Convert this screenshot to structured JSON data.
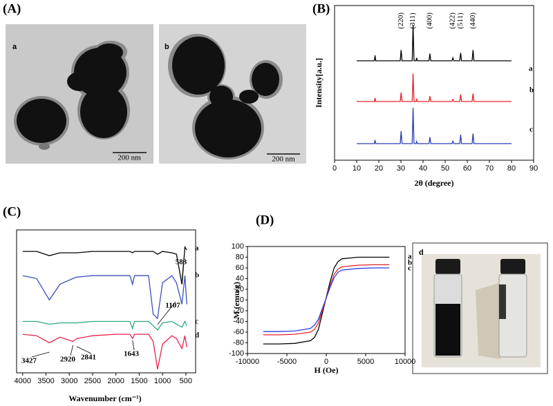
{
  "panel_labels": [
    "(A)",
    "(B)",
    "(C)",
    "(D)"
  ],
  "tem": {
    "labels": [
      "a",
      "b"
    ],
    "scale_bars": [
      "200 nm",
      "200 nm"
    ]
  },
  "photo_label": "d",
  "chart_data": [
    {
      "type": "line",
      "xlabel": "2θ (degree)",
      "ylabel": "Intensity[a.u.]",
      "xlim": [
        0,
        90
      ],
      "xticks": [
        0,
        10,
        20,
        30,
        40,
        50,
        60,
        70,
        80,
        90
      ],
      "x": [
        10,
        18,
        18.3,
        18.6,
        29.7,
        30.1,
        30.5,
        35.1,
        35.5,
        35.9,
        36.8,
        37.1,
        37.4,
        42.7,
        43.1,
        43.5,
        53.1,
        53.5,
        53.9,
        56.6,
        57.0,
        57.4,
        62.2,
        62.6,
        63.0,
        80
      ],
      "series": [
        {
          "name": "a",
          "color": "#000000",
          "values": [
            0,
            0,
            15,
            0,
            0,
            30,
            0,
            0,
            100,
            0,
            0,
            8,
            0,
            0,
            20,
            0,
            0,
            8,
            0,
            0,
            22,
            0,
            0,
            30,
            0,
            0
          ]
        },
        {
          "name": "b",
          "color": "#e8202a",
          "values": [
            0,
            0,
            10,
            0,
            0,
            25,
            0,
            0,
            78,
            0,
            0,
            6,
            0,
            0,
            15,
            0,
            0,
            6,
            0,
            0,
            20,
            0,
            0,
            22,
            0,
            0
          ]
        },
        {
          "name": "c",
          "color": "#2a3fb0",
          "values": [
            0,
            0,
            10,
            0,
            0,
            35,
            0,
            0,
            100,
            0,
            0,
            6,
            0,
            0,
            18,
            0,
            0,
            7,
            0,
            0,
            25,
            0,
            0,
            28,
            0,
            0
          ]
        }
      ],
      "peak_labels": [
        {
          "label": "(220)",
          "x": 30.1
        },
        {
          "label": "(311)",
          "x": 35.5
        },
        {
          "label": "(400)",
          "x": 43.1
        },
        {
          "label": "(422)",
          "x": 53.5
        },
        {
          "label": "(511)",
          "x": 57.0
        },
        {
          "label": "(440)",
          "x": 62.6
        }
      ]
    },
    {
      "type": "line",
      "xlabel": "Wavenumber (cm⁻¹)",
      "xlim": [
        4130,
        290
      ],
      "xticks": [
        4000,
        3500,
        3000,
        2500,
        2000,
        1500,
        1000,
        500
      ],
      "x": [
        4000,
        3700,
        3427,
        3200,
        2920,
        2841,
        2500,
        2000,
        1700,
        1643,
        1600,
        1300,
        1200,
        1107,
        1000,
        800,
        700,
        583,
        520,
        480
      ],
      "series": [
        {
          "name": "a",
          "color": "#000000",
          "values": [
            85,
            85,
            82,
            84,
            84,
            84,
            85,
            85,
            85,
            84,
            85,
            85,
            85,
            83,
            85,
            84,
            83,
            62,
            88,
            86
          ]
        },
        {
          "name": "b",
          "color": "#3a4fb8",
          "values": [
            68,
            66,
            51,
            62,
            66,
            67,
            68,
            68,
            68,
            62,
            68,
            68,
            41,
            38,
            63,
            68,
            63,
            48,
            68,
            48
          ]
        },
        {
          "name": "c",
          "color": "#2aa878",
          "values": [
            36,
            36,
            34,
            35,
            35,
            35,
            36,
            36,
            36,
            31,
            36,
            36,
            33,
            30,
            35,
            36,
            34,
            32,
            36,
            33
          ]
        },
        {
          "name": "d",
          "color": "#e8204a",
          "values": [
            27,
            26,
            21,
            25,
            22,
            24,
            26,
            27,
            27,
            24,
            27,
            27,
            22,
            2.5,
            20,
            26,
            24,
            17,
            26,
            18
          ]
        }
      ],
      "annotations": [
        {
          "label": "3427",
          "x": 3427
        },
        {
          "label": "2920",
          "x": 2920
        },
        {
          "label": "2841",
          "x": 2841
        },
        {
          "label": "1643",
          "x": 1643
        },
        {
          "label": "1107",
          "x": 1107
        },
        {
          "label": "583",
          "x": 583
        }
      ]
    },
    {
      "type": "line",
      "xlabel": "H (Oe)",
      "ylabel": "M (emu/g)",
      "xlim": [
        -10000,
        10000
      ],
      "xticks": [
        -10000,
        -5000,
        0,
        5000,
        10000
      ],
      "ylim": [
        -100,
        100
      ],
      "yticks": [
        -100,
        -80,
        -60,
        -40,
        -20,
        0,
        20,
        40,
        60,
        80,
        100
      ],
      "x": [
        -8000,
        -6000,
        -4000,
        -2000,
        -1500,
        -1000,
        -500,
        0,
        500,
        1000,
        1500,
        2000,
        4000,
        6000,
        8000
      ],
      "series": [
        {
          "name": "a",
          "color": "#000000",
          "values": [
            -82,
            -82,
            -81,
            -76,
            -70,
            -55,
            -25,
            5,
            35,
            60,
            72,
            77,
            80,
            80,
            80
          ]
        },
        {
          "name": "b",
          "color": "#e8202a",
          "values": [
            -65,
            -65,
            -64,
            -60,
            -55,
            -43,
            -20,
            4,
            28,
            48,
            58,
            62,
            65,
            66,
            66
          ]
        },
        {
          "name": "c",
          "color": "#2a3fe0",
          "values": [
            -59,
            -59,
            -58,
            -53,
            -47,
            -36,
            -16,
            4,
            24,
            42,
            52,
            56,
            59,
            60,
            60
          ]
        }
      ]
    }
  ]
}
